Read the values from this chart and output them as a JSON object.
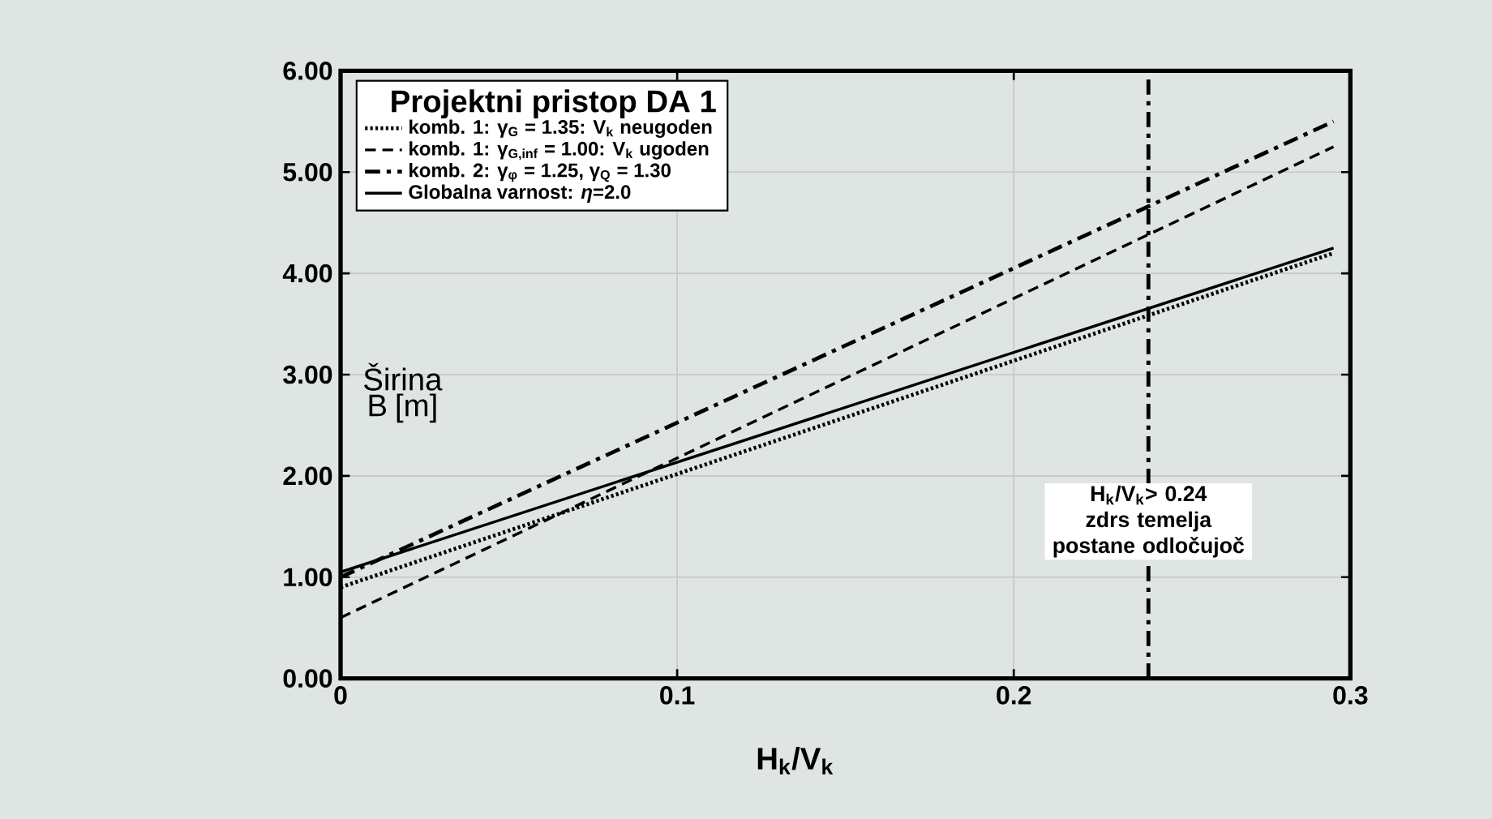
{
  "chart_data": {
    "type": "line",
    "xlabel": "H$_{k}$/V$_{k}$",
    "ylabel": "Širina B [m]",
    "legend_title": "Projektni pristop DA 1",
    "x": [
      0,
      0.295
    ],
    "series": [
      {
        "name": "komb. 1: γ$_{G}$ = 1.35: V$_{k}$  neugoden",
        "color": "#000000",
        "line_style": "dotted",
        "values": [
          0.9,
          4.2
        ]
      },
      {
        "name": "komb. 1: γ$_{G,inf}$ = 1.00: V$_{k}$  ugoden",
        "color": "#000000",
        "line_style": "dashed",
        "values": [
          0.6,
          5.25
        ]
      },
      {
        "name": "komb. 2: γ$_{φ}$ = 1.25, γ$_{Q}$ = 1.30",
        "color": "#000000",
        "line_style": "dashdot",
        "values": [
          1.0,
          5.5
        ]
      },
      {
        "name": "Globalna varnost: *η*=2.0",
        "color": "#000000",
        "line_style": "solid",
        "values": [
          1.05,
          4.25
        ]
      }
    ],
    "xlim": [
      0,
      0.3
    ],
    "ylim": [
      0,
      6
    ],
    "xticks": [
      0,
      0.1,
      0.2,
      0.3
    ],
    "yticks": [
      {
        "value": 0,
        "label": "0.00"
      },
      {
        "value": 1,
        "label": "1.00"
      },
      {
        "value": 2,
        "label": "2.00"
      },
      {
        "value": 3,
        "label": "3.00"
      },
      {
        "value": 4,
        "label": "4.00"
      },
      {
        "value": 5,
        "label": "5.00"
      },
      {
        "value": 6,
        "label": "6.00"
      }
    ],
    "ref_lines": [
      {
        "axis": "x",
        "value": 0.24,
        "label": "H$_{k}$/V$_{k}$> 0.24 zdrs temelja postane odločujoč",
        "line_style": "dashdot",
        "color": "#000000"
      }
    ],
    "grid": true,
    "legend": "top left"
  }
}
